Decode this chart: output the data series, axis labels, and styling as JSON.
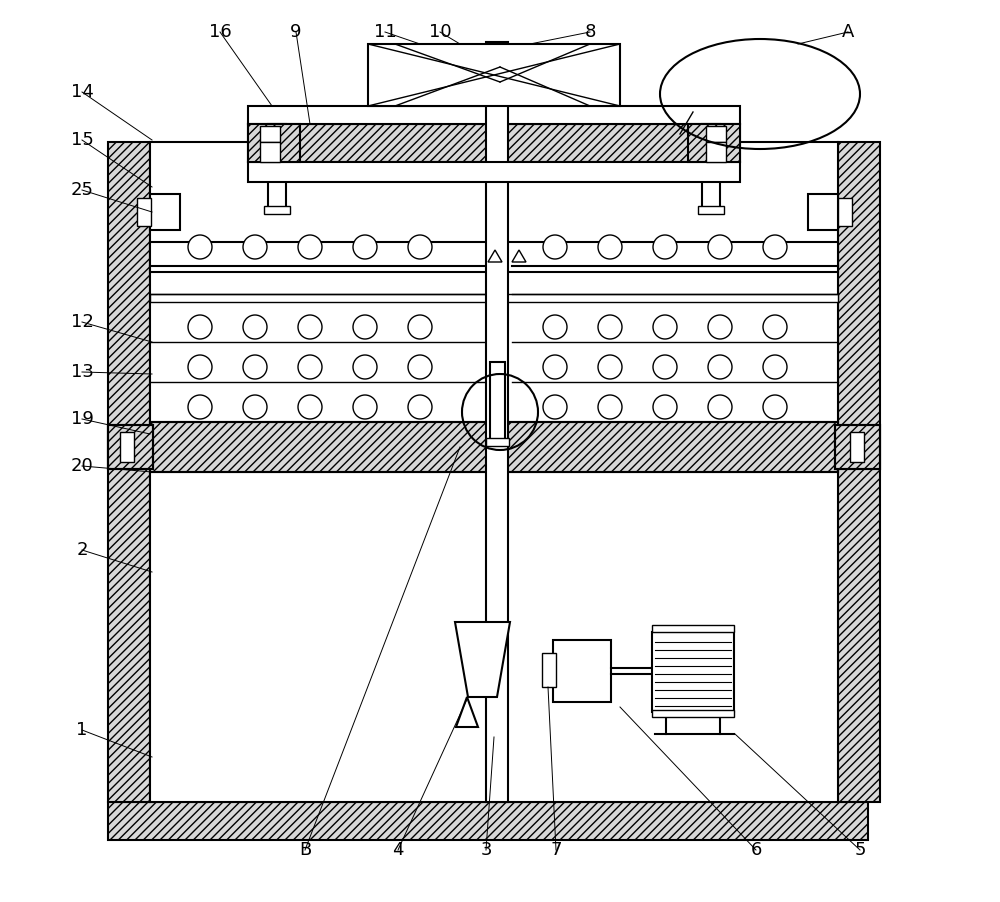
{
  "bg_color": "#ffffff",
  "line_color": "#000000",
  "figure_width": 10.0,
  "figure_height": 9.02,
  "dpi": 100
}
